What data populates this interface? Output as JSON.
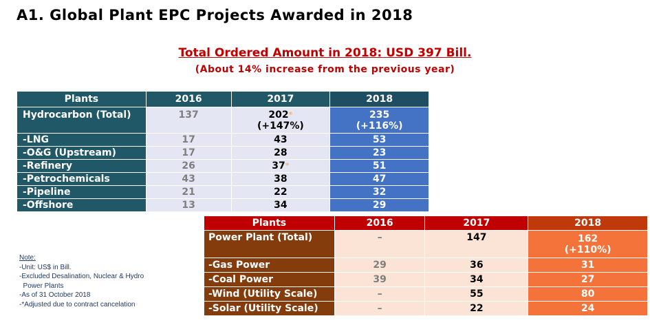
{
  "title": "A1. Global Plant EPC Projects Awarded in 2018",
  "headline": "Total Ordered Amount in 2018: USD 397 Bill.",
  "subline": "(About 14% increase from the previous year)",
  "hydrocarbon_table": {
    "headers": [
      "Plants",
      "2016",
      "2017",
      "2018"
    ],
    "total": {
      "label": "Hydrocarbon (Total)",
      "v2016": "137",
      "v2017": "202",
      "v2017_change": "(+147%)",
      "v2018": "235",
      "v2018_change": "(+116%)"
    },
    "rows": [
      {
        "label": "-LNG",
        "v2016": "17",
        "v2017": "43",
        "v2018": "53"
      },
      {
        "label": "-O&G (Upstream)",
        "v2016": "17",
        "v2017": "28",
        "v2018": "23"
      },
      {
        "label": "-Refinery",
        "v2016": "26",
        "v2017": "37",
        "v2018": "51"
      },
      {
        "label": "-Petrochemicals",
        "v2016": "43",
        "v2017": "38",
        "v2018": "47"
      },
      {
        "label": "-Pipeline",
        "v2016": "21",
        "v2017": "22",
        "v2018": "32"
      },
      {
        "label": "-Offshore",
        "v2016": "13",
        "v2017": "34",
        "v2018": "29"
      }
    ]
  },
  "power_table": {
    "headers": [
      "Plants",
      "2016",
      "2017",
      "2018"
    ],
    "total": {
      "label": "Power Plant (Total)",
      "v2016": "–",
      "v2017": "147",
      "v2018": "162",
      "v2018_change": "(+110%)"
    },
    "rows": [
      {
        "label": "-Gas Power",
        "v2016": "29",
        "v2017": "36",
        "v2018": "31"
      },
      {
        "label": "-Coal Power",
        "v2016": "39",
        "v2017": "34",
        "v2018": "27"
      },
      {
        "label": "-Wind (Utility Scale)",
        "v2016": "–",
        "v2017": "55",
        "v2018": "80"
      },
      {
        "label": "-Solar (Utility Scale)",
        "v2016": "–",
        "v2017": "22",
        "v2018": "24"
      }
    ]
  },
  "asterisk": "*",
  "note": {
    "title": "Note:",
    "lines": [
      "-Unit: US$ in Bill.",
      "-Excluded Desalination, Nuclear & Hydro",
      "  Power Plants",
      "-As of 31 October 2018",
      "-*Adjusted due to contract cancelation"
    ]
  }
}
